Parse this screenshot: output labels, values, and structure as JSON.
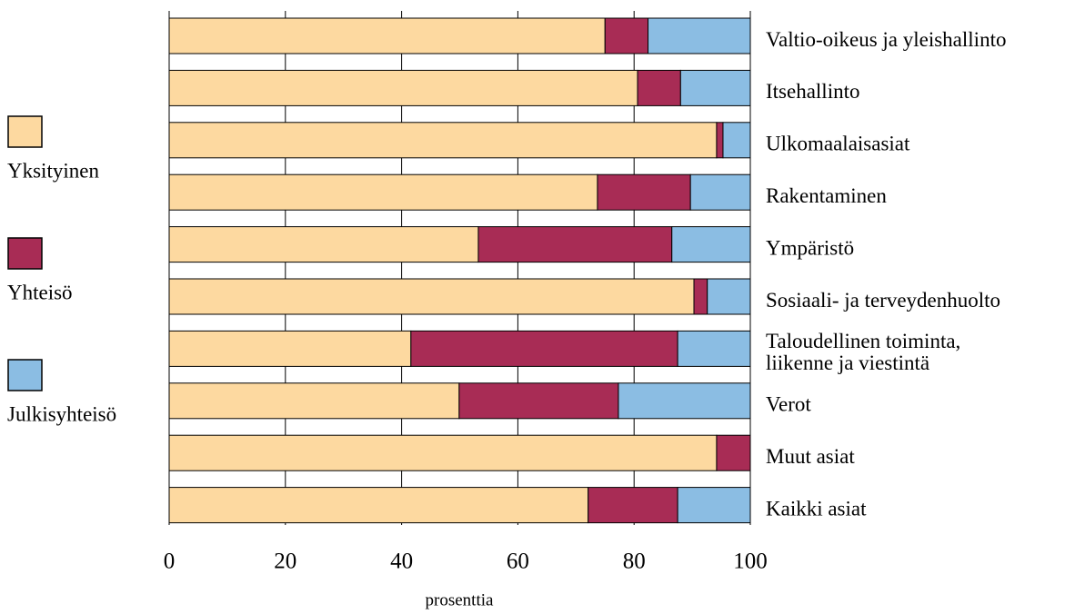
{
  "chart_data": {
    "type": "stacked-barh",
    "xlabel": "prosenttia",
    "categories": [
      "Valtio-oikeus ja yleishallinto",
      "Itsehallinto",
      "Ulkomaalaisasiat",
      "Rakentaminen",
      "Ympäristö",
      "Sosiaali- ja terveydenhuolto",
      "Taloudellinen toiminta,\nliikenne ja viestintä",
      "Verot",
      "Muut asiat",
      "Kaikki asiat"
    ],
    "series": [
      {
        "name": "Yksityinen",
        "color": "#fdd9a0",
        "values": [
          75.0,
          80.6,
          94.2,
          73.7,
          53.2,
          90.3,
          41.6,
          49.9,
          94.2,
          72.1
        ]
      },
      {
        "name": "Yhteisö",
        "color": "#a82c55",
        "values": [
          7.4,
          7.4,
          1.1,
          16.0,
          33.3,
          2.3,
          45.9,
          27.4,
          5.8,
          15.4
        ]
      },
      {
        "name": "Julkisyhteisö",
        "color": "#8bbde3",
        "values": [
          17.6,
          12.0,
          4.7,
          10.3,
          13.5,
          7.4,
          12.5,
          22.7,
          0,
          12.5
        ]
      }
    ],
    "xlim": [
      0,
      100
    ],
    "xticks": [
      0,
      20,
      40,
      60,
      80,
      100
    ],
    "grid": true,
    "legend": "left"
  }
}
